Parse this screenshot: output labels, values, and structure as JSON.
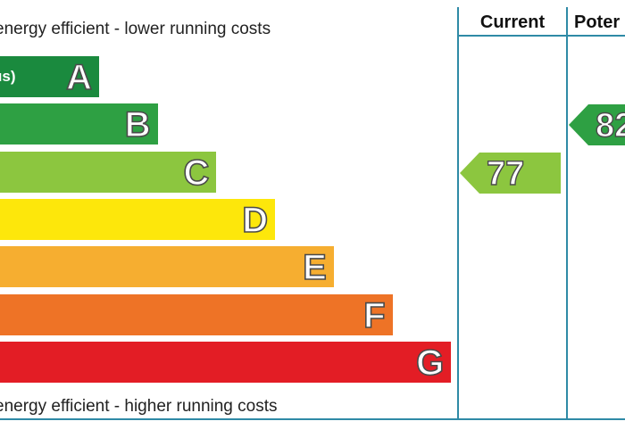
{
  "chart_data": {
    "type": "bar",
    "top_caption": "energy efficient - lower running costs",
    "bottom_caption": "energy efficient - higher running costs",
    "bands": [
      {
        "letter": "A",
        "range": "us)",
        "color": "#1a8a3e"
      },
      {
        "letter": "B",
        "range": ")",
        "color": "#2ea043"
      },
      {
        "letter": "C",
        "range": ")",
        "color": "#8cc63f"
      },
      {
        "letter": "D",
        "range": ")",
        "color": "#fde70b"
      },
      {
        "letter": "E",
        "range": "",
        "color": "#f6ae30"
      },
      {
        "letter": "F",
        "range": ")",
        "color": "#ee7326"
      },
      {
        "letter": "G",
        "range": "",
        "color": "#e31d25"
      }
    ],
    "columns": [
      "Current",
      "Poter"
    ],
    "current": {
      "value": "77",
      "band": "C",
      "color": "#8cc63f"
    },
    "potential": {
      "value": "82",
      "band": "B",
      "color": "#2ea043"
    }
  }
}
